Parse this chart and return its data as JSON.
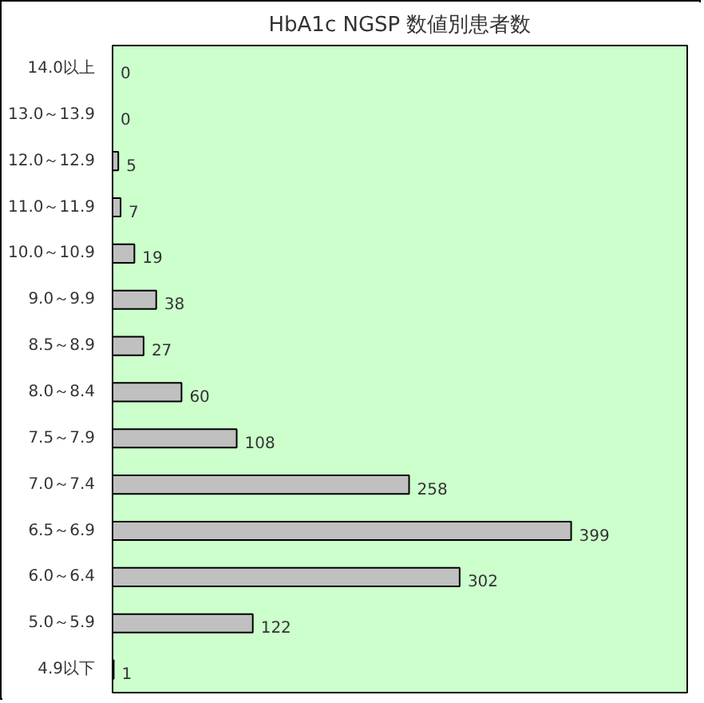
{
  "chart_data": {
    "type": "bar",
    "orientation": "horizontal",
    "title": "HbA1c NGSP 数値別患者数",
    "categories": [
      "14.0以上",
      "13.0～13.9",
      "12.0～12.9",
      "11.0～11.9",
      "10.0～10.9",
      "9.0～9.9",
      "8.5～8.9",
      "8.0～8.4",
      "7.5～7.9",
      "7.0～7.4",
      "6.5～6.9",
      "6.0～6.4",
      "5.0～5.9",
      "4.9以下"
    ],
    "values": [
      0,
      0,
      5,
      7,
      19,
      38,
      27,
      60,
      108,
      258,
      399,
      302,
      122,
      1
    ],
    "color": "#c0c0c0",
    "xlim": [
      0,
      500
    ],
    "data_labels": true,
    "grid": false,
    "tick_labels": "y"
  }
}
